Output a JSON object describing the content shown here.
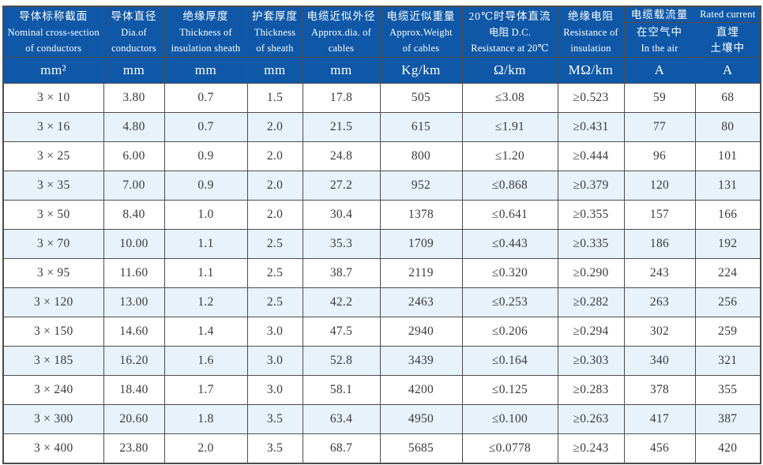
{
  "theme": {
    "header_bg": "#0F58A8",
    "header_text": "#FFFFFF",
    "row_bg": "#FFFFFF",
    "row_alt_bg": "#E7F2FA",
    "border_color": "#4D4D4D",
    "data_text": "#3A3A3A",
    "page_bg": "#FFFFFF"
  },
  "table": {
    "columns": [
      {
        "key": "cross-section",
        "header_lines": [
          "导体标称截面",
          "Nominal cross-section",
          "of conductors"
        ],
        "unit": "mm²"
      },
      {
        "key": "conductor-dia",
        "header_lines": [
          "导体直径",
          "Dia.of",
          "conductors"
        ],
        "unit": "mm"
      },
      {
        "key": "insulation-thickness",
        "header_lines": [
          "绝缘厚度",
          "Thickness of",
          "insulation sheath"
        ],
        "unit": "mm"
      },
      {
        "key": "sheath-thickness",
        "header_lines": [
          "护套厚度",
          "Thickness",
          "of sheath"
        ],
        "unit": "mm"
      },
      {
        "key": "approx-dia",
        "header_lines": [
          "电缆近似外径",
          "Approx.dia. of",
          "cables"
        ],
        "unit": "mm"
      },
      {
        "key": "approx-weight",
        "header_lines": [
          "电缆近似重量",
          "Approx.Weight",
          "of cables"
        ],
        "unit": "Kg/km"
      },
      {
        "key": "dc-resistance",
        "header_lines": [
          "20℃时导体直流",
          "电阻 D.C.",
          "Resistance at 20℃"
        ],
        "unit": "Ω/km"
      },
      {
        "key": "insulation-resistance",
        "header_lines": [
          "绝缘电阻",
          "Resistance of",
          "insulation"
        ],
        "unit": "MΩ/km"
      },
      {
        "key": "current-in-air",
        "group_label": "电缆载流量",
        "header_lines": [
          "在空气中",
          "In the air"
        ],
        "unit": "A"
      },
      {
        "key": "current-buried",
        "group_label": "Rated current",
        "header_lines": [
          "直埋",
          "土壤中"
        ],
        "unit": "A"
      }
    ],
    "rows": [
      [
        "3 × 10",
        "3.80",
        "0.7",
        "1.5",
        "17.8",
        "505",
        "≤3.08",
        "≥0.523",
        "59",
        "68"
      ],
      [
        "3 × 16",
        "4.80",
        "0.7",
        "2.0",
        "21.5",
        "615",
        "≤1.91",
        "≥0.431",
        "77",
        "80"
      ],
      [
        "3 × 25",
        "6.00",
        "0.9",
        "2.0",
        "24.8",
        "800",
        "≤1.20",
        "≥0.444",
        "96",
        "101"
      ],
      [
        "3 × 35",
        "7.00",
        "0.9",
        "2.0",
        "27.2",
        "952",
        "≤0.868",
        "≥0.379",
        "120",
        "131"
      ],
      [
        "3 × 50",
        "8.40",
        "1.0",
        "2.0",
        "30.4",
        "1378",
        "≤0.641",
        "≥0.355",
        "157",
        "166"
      ],
      [
        "3 × 70",
        "10.00",
        "1.1",
        "2.5",
        "35.3",
        "1709",
        "≤0.443",
        "≥0.335",
        "186",
        "192"
      ],
      [
        "3 × 95",
        "11.60",
        "1.1",
        "2.5",
        "38.7",
        "2119",
        "≤0.320",
        "≥0.290",
        "243",
        "224"
      ],
      [
        "3 × 120",
        "13.00",
        "1.2",
        "2.5",
        "42.2",
        "2463",
        "≤0.253",
        "≥0.282",
        "263",
        "256"
      ],
      [
        "3 × 150",
        "14.60",
        "1.4",
        "3.0",
        "47.5",
        "2940",
        "≤0.206",
        "≥0.294",
        "302",
        "259"
      ],
      [
        "3 × 185",
        "16.20",
        "1.6",
        "3.0",
        "52.8",
        "3439",
        "≤0.164",
        "≥0.303",
        "340",
        "321"
      ],
      [
        "3 × 240",
        "18.40",
        "1.7",
        "3.0",
        "58.1",
        "4200",
        "≤0.125",
        "≥0.283",
        "378",
        "355"
      ],
      [
        "3 × 300",
        "20.60",
        "1.8",
        "3.5",
        "63.4",
        "4950",
        "≤0.100",
        "≥0.263",
        "417",
        "387"
      ],
      [
        "3 × 400",
        "23.80",
        "2.0",
        "3.5",
        "68.7",
        "5685",
        "≤0.0778",
        "≥0.243",
        "456",
        "420"
      ]
    ]
  }
}
